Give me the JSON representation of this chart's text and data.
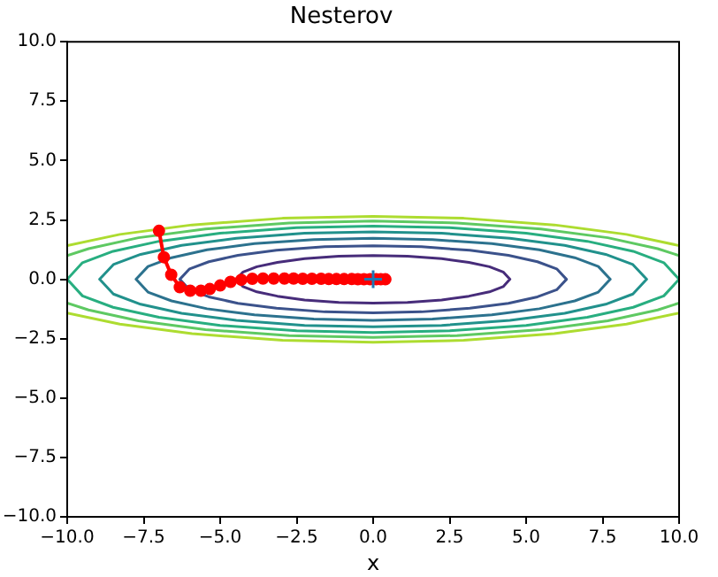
{
  "chart_data": {
    "type": "line",
    "title": "Nesterov",
    "xlabel": "x",
    "xlim": [
      -10,
      10
    ],
    "ylim": [
      -10,
      10
    ],
    "xticks": [
      {
        "value": -10,
        "label": "−10.0"
      },
      {
        "value": -7.5,
        "label": "−7.5"
      },
      {
        "value": -5,
        "label": "−5.0"
      },
      {
        "value": -2.5,
        "label": "−2.5"
      },
      {
        "value": 0,
        "label": "0.0"
      },
      {
        "value": 2.5,
        "label": "2.5"
      },
      {
        "value": 5,
        "label": "5.0"
      },
      {
        "value": 7.5,
        "label": "7.5"
      },
      {
        "value": 10,
        "label": "10.0"
      }
    ],
    "yticks": [
      {
        "value": -10,
        "label": "−10.0"
      },
      {
        "value": -7.5,
        "label": "−7.5"
      },
      {
        "value": -5,
        "label": "−5.0"
      },
      {
        "value": -2.5,
        "label": "−2.5"
      },
      {
        "value": 0,
        "label": "0.0"
      },
      {
        "value": 2.5,
        "label": "2.5"
      },
      {
        "value": 5,
        "label": "5.0"
      },
      {
        "value": 7.5,
        "label": "7.5"
      },
      {
        "value": 10,
        "label": "10.0"
      }
    ],
    "grid": false,
    "legend": false,
    "series": [
      {
        "color": "#472c7a",
        "marker": "none",
        "x": [
          -4.47,
          -4.25,
          -3.8,
          -3.13,
          -2.24,
          -1.12,
          0,
          1.12,
          2.24,
          3.13,
          3.8,
          4.25,
          4.47,
          null,
          4.47,
          4.25,
          3.8,
          3.13,
          2.24,
          1.12,
          0,
          -1.12,
          -2.24,
          -3.13,
          -3.8,
          -4.25,
          -4.47
        ],
        "values": [
          0,
          0.31,
          0.53,
          0.71,
          0.87,
          0.97,
          1,
          0.97,
          0.87,
          0.71,
          0.53,
          0.31,
          0,
          null,
          0,
          -0.31,
          -0.53,
          -0.71,
          -0.87,
          -0.97,
          -1,
          -0.97,
          -0.87,
          -0.71,
          -0.53,
          -0.31,
          0
        ]
      },
      {
        "color": "#3b528b",
        "marker": "none",
        "x": [
          -6.32,
          -6,
          -5.37,
          -4.42,
          -3.16,
          -1.58,
          0,
          1.58,
          3.16,
          4.42,
          5.37,
          6,
          6.32,
          null,
          6.32,
          6,
          5.37,
          4.42,
          3.16,
          1.58,
          0,
          -1.58,
          -3.16,
          -4.42,
          -5.37,
          -6,
          -6.32
        ],
        "values": [
          0,
          0.44,
          0.74,
          1.01,
          1.22,
          1.37,
          1.41,
          1.37,
          1.22,
          1.01,
          0.74,
          0.44,
          0,
          null,
          0,
          -0.44,
          -0.74,
          -1.01,
          -1.22,
          -1.37,
          -1.41,
          -1.37,
          -1.22,
          -1.01,
          -0.74,
          -0.44,
          0
        ]
      },
      {
        "color": "#2c728e",
        "marker": "none",
        "x": [
          -7.75,
          -7.36,
          -6.59,
          -5.43,
          -3.88,
          -1.94,
          0,
          1.94,
          3.88,
          5.43,
          6.59,
          7.36,
          7.75,
          null,
          7.75,
          7.36,
          6.59,
          5.43,
          3.88,
          1.94,
          0,
          -1.94,
          -3.88,
          -5.43,
          -6.59,
          -7.36,
          -7.75
        ],
        "values": [
          0,
          0.54,
          0.91,
          1.24,
          1.5,
          1.67,
          1.73,
          1.67,
          1.5,
          1.24,
          0.91,
          0.54,
          0,
          null,
          0,
          -0.54,
          -0.91,
          -1.24,
          -1.5,
          -1.67,
          -1.73,
          -1.67,
          -1.5,
          -1.24,
          -0.91,
          -0.54,
          0
        ]
      },
      {
        "color": "#21918c",
        "marker": "none",
        "x": [
          -8.94,
          -8.49,
          -7.6,
          -6.26,
          -4.47,
          -2.24,
          0,
          2.24,
          4.47,
          6.26,
          7.6,
          8.49,
          8.94,
          null,
          8.94,
          8.49,
          7.6,
          6.26,
          4.47,
          2.24,
          0,
          -2.24,
          -4.47,
          -6.26,
          -7.6,
          -8.49,
          -8.94
        ],
        "values": [
          0,
          0.62,
          1.05,
          1.43,
          1.73,
          1.94,
          2,
          1.94,
          1.73,
          1.43,
          1.05,
          0.62,
          0,
          null,
          0,
          -0.62,
          -1.05,
          -1.43,
          -1.73,
          -1.94,
          -2,
          -1.94,
          -1.73,
          -1.43,
          -1.05,
          -0.62,
          0
        ]
      },
      {
        "color": "#28ae80",
        "marker": "none",
        "x": [
          -10,
          -9.5,
          -8.5,
          -7,
          -5,
          -2.5,
          0,
          2.5,
          5,
          7,
          8.5,
          9.5,
          10,
          null,
          10,
          9.5,
          8.5,
          7,
          5,
          2.5,
          0,
          -2.5,
          -5,
          -7,
          -8.5,
          -9.5,
          -10
        ],
        "values": [
          0,
          0.7,
          1.18,
          1.6,
          1.94,
          2.17,
          2.24,
          2.17,
          1.94,
          1.6,
          1.18,
          0.7,
          0,
          null,
          0,
          -0.7,
          -1.18,
          -1.6,
          -1.94,
          -2.17,
          -2.24,
          -2.17,
          -1.94,
          -1.6,
          -1.18,
          -0.7,
          0
        ]
      },
      {
        "color": "#5ec962",
        "marker": "none",
        "x": [
          -10,
          -9.3,
          -7.67,
          -5.48,
          -2.74,
          0,
          2.74,
          5.48,
          7.67,
          9.3,
          10,
          null,
          10,
          9.3,
          7.67,
          5.48,
          2.74,
          0,
          -2.74,
          -5.48,
          -7.67,
          -9.3,
          -10
        ],
        "values": [
          1.0,
          1.29,
          1.75,
          2.12,
          2.37,
          2.45,
          2.37,
          2.12,
          1.75,
          1.29,
          1.0,
          null,
          -1.0,
          -1.29,
          -1.75,
          -2.12,
          -2.37,
          -2.45,
          -2.37,
          -2.12,
          -1.75,
          -1.29,
          -1.0
        ]
      },
      {
        "color": "#addc30",
        "marker": "none",
        "x": [
          -10,
          -8.28,
          -5.92,
          -2.96,
          0,
          2.96,
          5.92,
          8.28,
          10,
          null,
          10,
          8.28,
          5.92,
          2.96,
          0,
          -2.96,
          -5.92,
          -8.28,
          -10
        ],
        "values": [
          1.42,
          1.89,
          2.29,
          2.57,
          2.65,
          2.57,
          2.29,
          1.89,
          1.42,
          null,
          -1.42,
          -1.89,
          -2.29,
          -2.57,
          -2.65,
          -2.57,
          -2.29,
          -1.89,
          -1.42
        ]
      },
      {
        "color": "#ff0000",
        "marker": "circle",
        "x": [
          -7.0,
          -6.84,
          -6.6,
          -6.32,
          -5.98,
          -5.63,
          -5.34,
          -5.0,
          -4.66,
          -4.31,
          -3.95,
          -3.6,
          -3.25,
          -2.9,
          -2.6,
          -2.3,
          -2.0,
          -1.7,
          -1.45,
          -1.2,
          -0.95,
          -0.7,
          -0.5,
          -0.3,
          -0.1,
          0.1,
          0.25,
          0.4
        ],
        "values": [
          2.04,
          0.93,
          0.19,
          -0.33,
          -0.48,
          -0.48,
          -0.41,
          -0.26,
          -0.11,
          -0.02,
          0.02,
          0.03,
          0.03,
          0.03,
          0.03,
          0.02,
          0.02,
          0.02,
          0.01,
          0.01,
          0.01,
          0.01,
          0,
          0,
          0,
          0,
          0,
          0
        ]
      },
      {
        "color": "#1f77b4",
        "marker": "cross",
        "x": [
          0
        ],
        "values": [
          0
        ]
      }
    ]
  }
}
